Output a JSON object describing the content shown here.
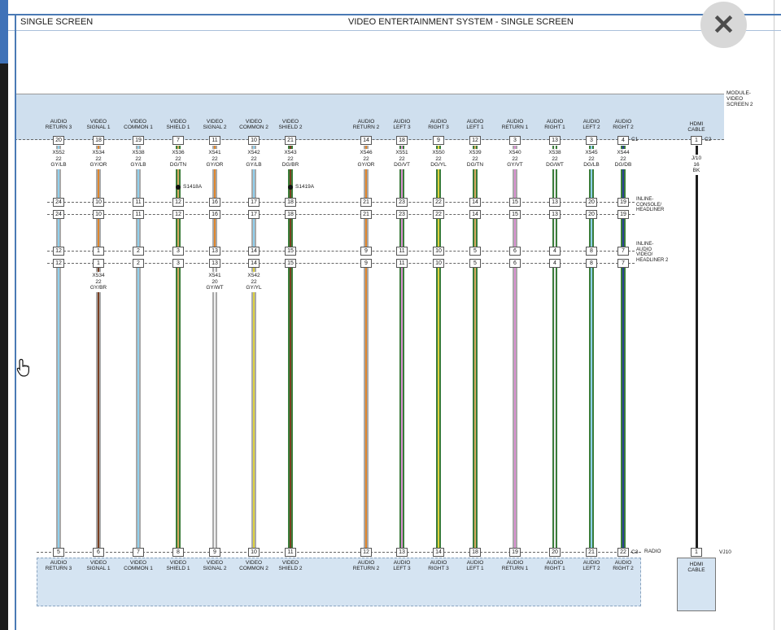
{
  "window": {
    "left_title": "SINGLE SCREEN",
    "center_title": "VIDEO ENTERTAINMENT SYSTEM - SINGLE SCREEN",
    "close_glyph": "✕"
  },
  "top_module": {
    "label": "MODULE-\nVIDEO\nSCREEN 2",
    "c1": "C1",
    "c2": "C2"
  },
  "inline_connector_1": {
    "label": "INLINE-\nCONSOLE/\nHEADLINER"
  },
  "inline_connector_2": {
    "label": "INLINE-\nAUDIO\nVIDEO/\nHEADLINER 2"
  },
  "bottom_connector": {
    "c3": "C3",
    "device": "RADIO",
    "vj10": "VJ10"
  },
  "hdmi": {
    "label": "HDMI CABLE",
    "top_pin": "1",
    "bottom_pin": "1",
    "wire": {
      "name": "J/10",
      "gauge": "16",
      "color": "BK"
    }
  },
  "splices": [
    {
      "label": "S1418A",
      "col": 3
    },
    {
      "label": "S1419A",
      "col": 6
    }
  ],
  "color_map": {
    "GY": "#a8a8a8",
    "LB": "#8fd0ee",
    "OR": "#e0862c",
    "TN": "#d3a95f",
    "DG": "#3a7d3a",
    "BR": "#7b3f21",
    "VT": "#d98fd0",
    "YL": "#ddd23e",
    "WT": "#efefef",
    "DB": "#2b3f94",
    "BK": "#1d1d1d"
  },
  "columns": [
    {
      "signal": "AUDIO RETURN 3",
      "top_pin": "20",
      "wire": {
        "name": "X552",
        "gauge": "22",
        "color": "GY/LB"
      },
      "inline1_pin": "24",
      "inline2_pin": "12",
      "lower_wire": null,
      "bottom_pin": "5"
    },
    {
      "signal": "VIDEO SIGNAL 1",
      "top_pin": "18",
      "wire": {
        "name": "X534",
        "gauge": "22",
        "color": "GY/OR"
      },
      "inline1_pin": "10",
      "inline2_pin": "1",
      "lower_wire": {
        "name": "X534",
        "gauge": "22",
        "color": "GY/BR"
      },
      "bottom_pin": "6"
    },
    {
      "signal": "VIDEO COMMON 1",
      "top_pin": "19",
      "wire": {
        "name": "X538",
        "gauge": "22",
        "color": "GY/LB"
      },
      "inline1_pin": "11",
      "inline2_pin": "2",
      "lower_wire": null,
      "bottom_pin": "7"
    },
    {
      "signal": "VIDEO SHIELD 1",
      "top_pin": "7",
      "wire": {
        "name": "X536",
        "gauge": "22",
        "color": "DG/TN"
      },
      "inline1_pin": "12",
      "inline2_pin": "3",
      "lower_wire": null,
      "bottom_pin": "8"
    },
    {
      "signal": "VIDEO SIGNAL 2",
      "top_pin": "11",
      "wire": {
        "name": "X541",
        "gauge": "22",
        "color": "GY/OR"
      },
      "inline1_pin": "16",
      "inline2_pin": "13",
      "lower_wire": {
        "name": "X541",
        "gauge": "20",
        "color": "GY/WT"
      },
      "bottom_pin": "9"
    },
    {
      "signal": "VIDEO COMMON 2",
      "top_pin": "10",
      "wire": {
        "name": "X542",
        "gauge": "22",
        "color": "GY/LB"
      },
      "inline1_pin": "17",
      "inline2_pin": "14",
      "lower_wire": {
        "name": "X542",
        "gauge": "22",
        "color": "GY/YL"
      },
      "bottom_pin": "10"
    },
    {
      "signal": "VIDEO SHIELD 2",
      "top_pin": "21",
      "wire": {
        "name": "X543",
        "gauge": "22",
        "color": "DG/BR"
      },
      "inline1_pin": "18",
      "inline2_pin": "15",
      "lower_wire": null,
      "bottom_pin": "11"
    },
    {
      "signal": "AUDIO RETURN 2",
      "top_pin": "14",
      "wire": {
        "name": "X546",
        "gauge": "22",
        "color": "GY/OR"
      },
      "inline1_pin": "21",
      "inline2_pin": "9",
      "lower_wire": null,
      "bottom_pin": "12"
    },
    {
      "signal": "AUDIO LEFT 3",
      "top_pin": "18",
      "wire": {
        "name": "X551",
        "gauge": "22",
        "color": "DG/VT"
      },
      "inline1_pin": "23",
      "inline2_pin": "11",
      "lower_wire": null,
      "bottom_pin": "13"
    },
    {
      "signal": "AUDIO RIGHT 3",
      "top_pin": "9",
      "wire": {
        "name": "X550",
        "gauge": "22",
        "color": "DG/YL"
      },
      "inline1_pin": "22",
      "inline2_pin": "10",
      "lower_wire": null,
      "bottom_pin": "14"
    },
    {
      "signal": "AUDIO LEFT 1",
      "top_pin": "12",
      "wire": {
        "name": "X539",
        "gauge": "22",
        "color": "DG/TN"
      },
      "inline1_pin": "14",
      "inline2_pin": "5",
      "lower_wire": null,
      "bottom_pin": "18"
    },
    {
      "signal": "AUDIO RETURN 1",
      "top_pin": "3",
      "wire": {
        "name": "X540",
        "gauge": "22",
        "color": "GY/VT"
      },
      "inline1_pin": "15",
      "inline2_pin": "6",
      "lower_wire": null,
      "bottom_pin": "19"
    },
    {
      "signal": "AUDIO RIGHT 1",
      "top_pin": "13",
      "wire": {
        "name": "X538",
        "gauge": "22",
        "color": "DG/WT"
      },
      "inline1_pin": "13",
      "inline2_pin": "4",
      "lower_wire": null,
      "bottom_pin": "20"
    },
    {
      "signal": "AUDIO LEFT 2",
      "top_pin": "3",
      "wire": {
        "name": "X545",
        "gauge": "22",
        "color": "DG/LB"
      },
      "inline1_pin": "20",
      "inline2_pin": "8",
      "lower_wire": null,
      "bottom_pin": "21"
    },
    {
      "signal": "AUDIO RIGHT 2",
      "top_pin": "4",
      "wire": {
        "name": "X544",
        "gauge": "22",
        "color": "DG/DB"
      },
      "inline1_pin": "19",
      "inline2_pin": "7",
      "lower_wire": null,
      "bottom_pin": "22"
    }
  ]
}
